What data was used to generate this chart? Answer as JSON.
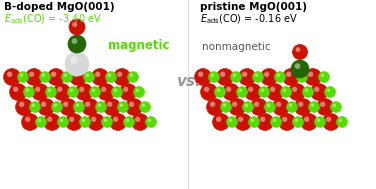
{
  "bg_color": "#ffffff",
  "title_left": "B-doped MgO(001)",
  "title_right": "pristine MgO(001)",
  "eads_left_value": "(CO) = -3.40 eV",
  "eads_right_value": "(CO) = -0.16 eV",
  "label_magnetic": "magnetic",
  "label_nonmagnetic": "nonmagnetic",
  "vs_text": "vs.",
  "red_color": "#cc1100",
  "green_color": "#55dd00",
  "white_color": "#d8d8d8",
  "dark_green_color": "#226600",
  "dark_gray_color": "#555555",
  "lime_text_color": "#55dd00",
  "vs_color": "#999999"
}
